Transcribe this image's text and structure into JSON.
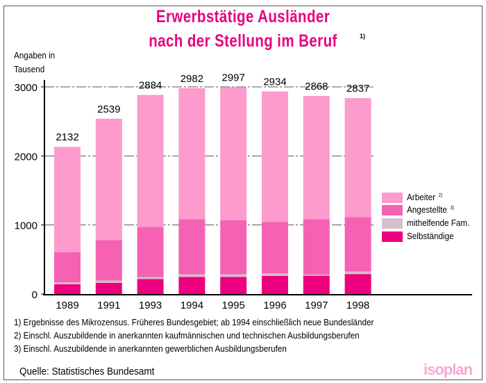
{
  "chart_data": {
    "type": "bar",
    "stacked": true,
    "title": "Erwerbstätige Ausländer nach der Stellung im Beruf",
    "title_line1": "Erwerbstätige Ausländer",
    "title_line2": "nach der Stellung im Beruf",
    "title_footnote": "1)",
    "ylabel_line1": "Angaben in",
    "ylabel_line2": "Tausend",
    "ylim": [
      0,
      3000
    ],
    "yticks": [
      "0",
      "1000",
      "2000",
      "3000"
    ],
    "ytick_values": [
      0,
      1000,
      2000,
      3000
    ],
    "grid": true,
    "legend_position": "right",
    "categories": [
      "1989",
      "1991",
      "1993",
      "1994",
      "1995",
      "1996",
      "1997",
      "1998"
    ],
    "totals": [
      2132,
      2539,
      2884,
      2982,
      2997,
      2934,
      2868,
      2837
    ],
    "total_labels": [
      "2132",
      "2539",
      "2884",
      "2982",
      "2997",
      "2934",
      "2868",
      "2837"
    ],
    "series": [
      {
        "name": "Selbständige",
        "footnote": "",
        "color": "#ec007f",
        "values": [
          141,
          161,
          218,
          248,
          248,
          262,
          265,
          289
        ]
      },
      {
        "name": "mithelfende Fam.",
        "footnote": "",
        "color": "#d4c0cc",
        "values": [
          27,
          34,
          27,
          37,
          37,
          37,
          17,
          37
        ]
      },
      {
        "name": "Angestellte",
        "footnote": "3)",
        "color": "#f562b4",
        "values": [
          436,
          587,
          728,
          799,
          785,
          745,
          802,
          788
        ]
      },
      {
        "name": "Arbeiter",
        "footnote": "2)",
        "color": "#fc9bcc",
        "values": [
          1528,
          1757,
          1911,
          1898,
          1927,
          1890,
          1784,
          1723
        ]
      }
    ]
  },
  "footnotes": [
    "1) Ergebnisse des Mikrozensus. Früheres Bundesgebiet; ab 1994 einschließlich neue Bundesländer",
    "2) Einschl. Auszubildende in anerkannten kaufmännischen und technischen Ausbildungsberufen",
    "3) Einschl. Auszubildende in anerkannten gewerblichen Ausbildungsberufen"
  ],
  "source": "Quelle: Statistisches Bundesamt",
  "logo_text": "isoplan"
}
